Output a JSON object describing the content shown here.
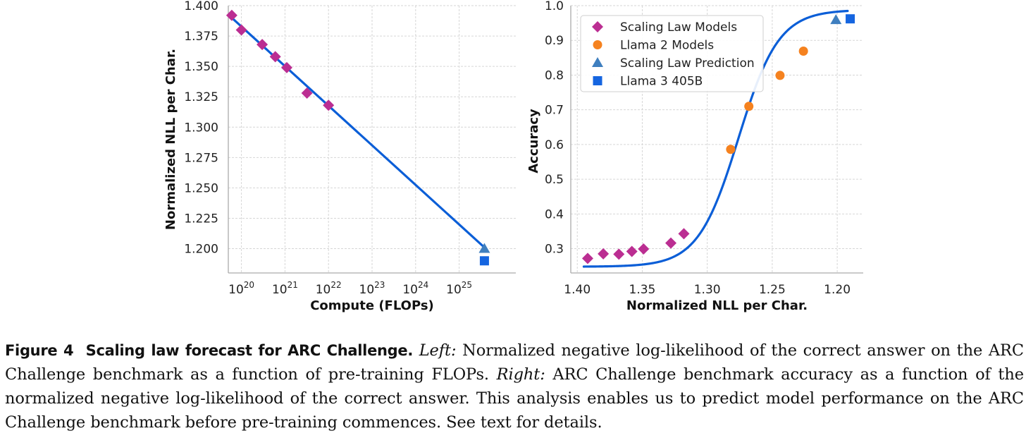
{
  "chart_data": [
    {
      "type": "scatter",
      "xlabel": "Compute (FLOPs)",
      "ylabel": "Normalized NLL per Char.",
      "xscale": "log",
      "xlim": [
        5e+19,
        2e+26
      ],
      "ylim": [
        1.18,
        1.4
      ],
      "x_ticks": [
        {
          "p": 20
        },
        {
          "p": 21
        },
        {
          "p": 22
        },
        {
          "p": 23
        },
        {
          "p": 24
        },
        {
          "p": 25
        }
      ],
      "y_ticks": [
        "1.400",
        "1.375",
        "1.350",
        "1.325",
        "1.300",
        "1.275",
        "1.250",
        "1.225",
        "1.200"
      ],
      "grid": true,
      "series": [
        {
          "name": "Scaling Law Models",
          "marker": "diamond",
          "color": "#bb2e92",
          "points": [
            [
              6e+19,
              1.392
            ],
            [
              1e+20,
              1.38
            ],
            [
              3e+20,
              1.368
            ],
            [
              6e+20,
              1.358
            ],
            [
              1.1e+21,
              1.349
            ],
            [
              3.2e+21,
              1.328
            ],
            [
              1e+22,
              1.318
            ]
          ]
        },
        {
          "name": "Scaling Law Prediction",
          "marker": "triangle",
          "color": "#3f7fbf",
          "points": [
            [
              3.8e+25,
              1.2
            ]
          ]
        },
        {
          "name": "Llama 3 405B",
          "marker": "square",
          "color": "#1565e0",
          "points": [
            [
              3.8e+25,
              1.19
            ]
          ]
        }
      ],
      "fit_line": {
        "color": "#0b5ed7",
        "points": [
          [
            6e+19,
            1.39
          ],
          [
            3.8e+25,
            1.201
          ]
        ]
      }
    },
    {
      "type": "scatter",
      "xlabel": "Normalized NLL per Char.",
      "ylabel": "Accuracy",
      "x_inverted": true,
      "xlim": [
        1.405,
        1.18
      ],
      "ylim": [
        0.23,
        1.0
      ],
      "x_ticks": [
        "1.40",
        "1.35",
        "1.30",
        "1.25",
        "1.20"
      ],
      "y_ticks": [
        "1.0",
        "0.9",
        "0.8",
        "0.7",
        "0.6",
        "0.5",
        "0.4",
        "0.3"
      ],
      "grid": true,
      "legend": "top-left",
      "series": [
        {
          "name": "Scaling Law Models",
          "marker": "diamond",
          "color": "#bb2e92",
          "points": [
            [
              1.392,
              0.272
            ],
            [
              1.38,
              0.285
            ],
            [
              1.368,
              0.284
            ],
            [
              1.358,
              0.292
            ],
            [
              1.349,
              0.299
            ],
            [
              1.328,
              0.316
            ],
            [
              1.318,
              0.343
            ]
          ]
        },
        {
          "name": "Llama 2 Models",
          "marker": "circle",
          "color": "#f5821f",
          "points": [
            [
              1.282,
              0.586
            ],
            [
              1.268,
              0.71
            ],
            [
              1.244,
              0.799
            ],
            [
              1.226,
              0.869
            ]
          ]
        },
        {
          "name": "Scaling Law Prediction",
          "marker": "triangle",
          "color": "#3f7fbf",
          "points": [
            [
              1.201,
              0.959
            ]
          ]
        },
        {
          "name": "Llama 3 405B",
          "marker": "square",
          "color": "#1565e0",
          "points": [
            [
              1.19,
              0.962
            ]
          ]
        }
      ],
      "fit_curve": {
        "color": "#0b5ed7",
        "lower": 0.248,
        "upper": 0.988,
        "midpoint": 1.276,
        "scale": 0.0155,
        "x_range": [
          1.395,
          1.192
        ]
      }
    }
  ],
  "caption": {
    "label": "Figure 4",
    "title": "Scaling law forecast for ARC Challenge.",
    "left_tag": "Left:",
    "left_text": "Normalized negative log-likelihood of the correct answer on the ARC Challenge benchmark as a function of pre-training FLOPs.",
    "right_tag": "Right:",
    "right_text": "ARC Challenge benchmark accuracy as a function of the normalized negative log-likelihood of the correct answer. This analysis enables us to predict model performance on the ARC Challenge benchmark before pre-training commences. See text for details."
  }
}
